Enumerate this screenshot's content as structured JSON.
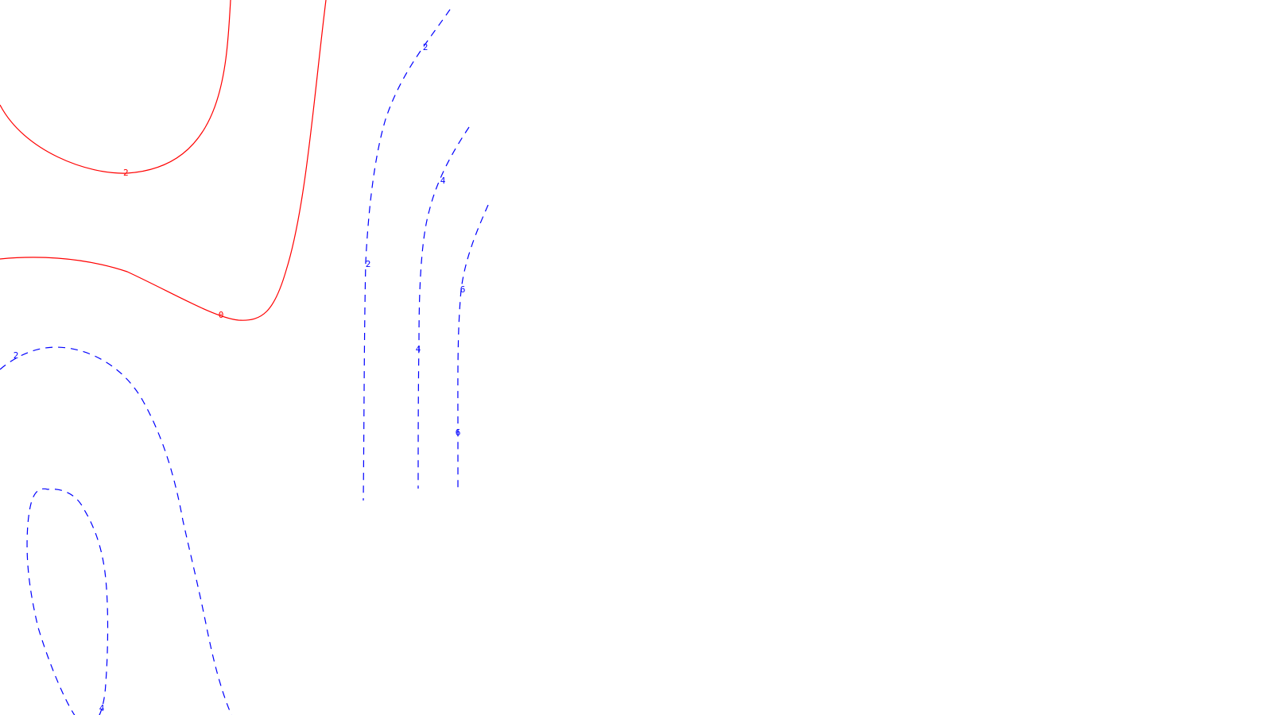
{
  "chart_data": {
    "type": "contour",
    "title": "",
    "xlabel": "",
    "ylabel": "",
    "grid": false,
    "legend": "none",
    "colors": {
      "negative_or_zero": "#ff0000",
      "positive": "#0000ff"
    },
    "styles": {
      "negative_or_zero": "solid",
      "positive": "dashed"
    },
    "levels": [
      {
        "level": -2,
        "label": "-2",
        "color": "#ff0000",
        "style": "solid"
      },
      {
        "level": 0,
        "label": "0",
        "color": "#ff0000",
        "style": "solid"
      },
      {
        "level": 2,
        "label": "2",
        "color": "#0000ff",
        "style": "dashed"
      },
      {
        "level": 4,
        "label": "4",
        "color": "#0000ff",
        "style": "dashed"
      },
      {
        "level": 6,
        "label": "6",
        "color": "#0000ff",
        "style": "dashed"
      }
    ]
  }
}
